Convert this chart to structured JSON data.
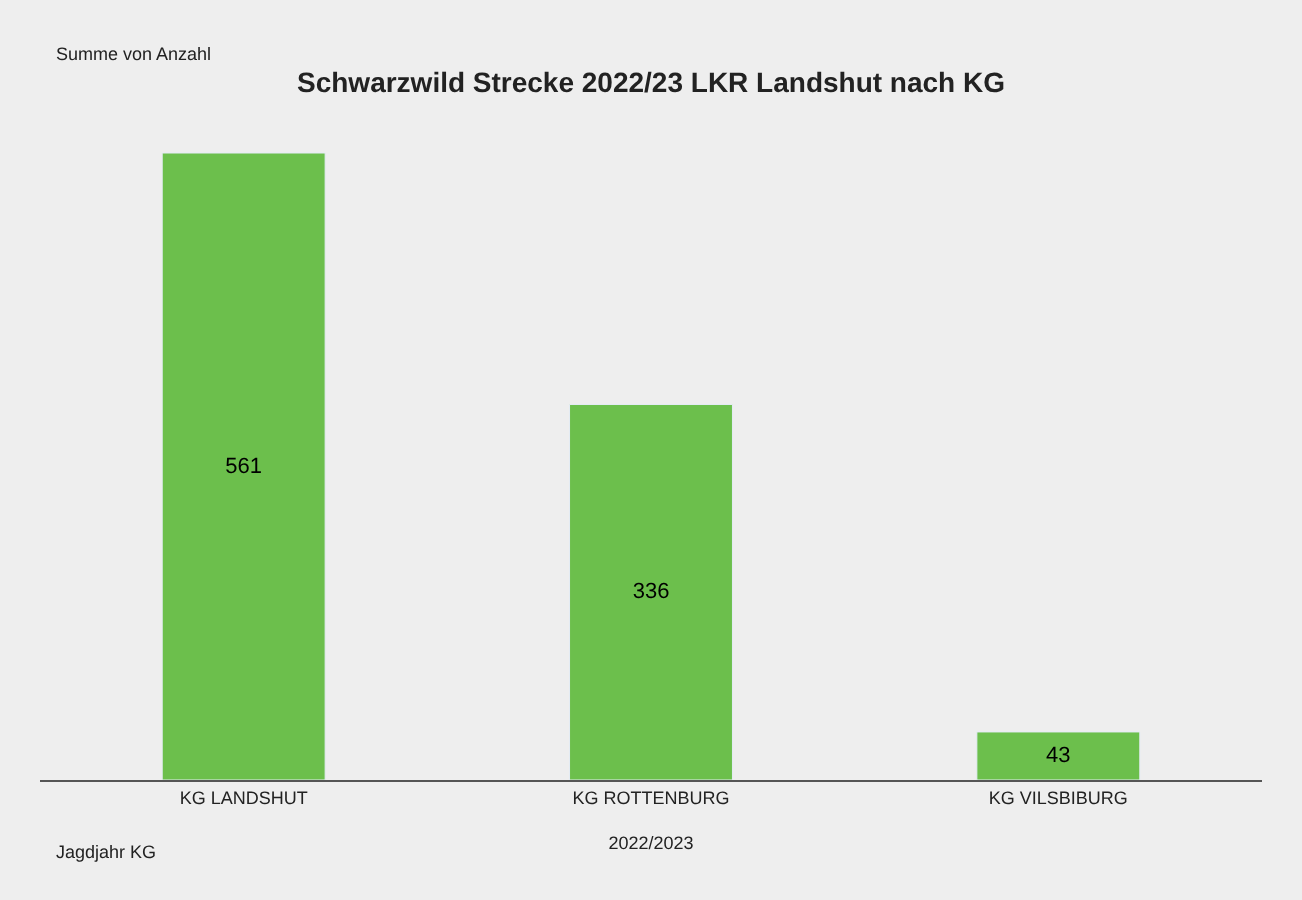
{
  "chart_data": {
    "type": "bar",
    "title": "Schwarzwild Strecke 2022/23 LKR Landshut nach KG",
    "categories": [
      "KG LANDSHUT",
      "KG ROTTENBURG",
      "KG VILSBIBURG"
    ],
    "values": [
      561,
      336,
      43
    ],
    "color": "#6cbf4c",
    "data_labels": true,
    "tick_labels": "x",
    "xlabel": "2022/2023",
    "annotations": [
      "Summe von Anzahl",
      "Jagdjahr KG"
    ]
  }
}
